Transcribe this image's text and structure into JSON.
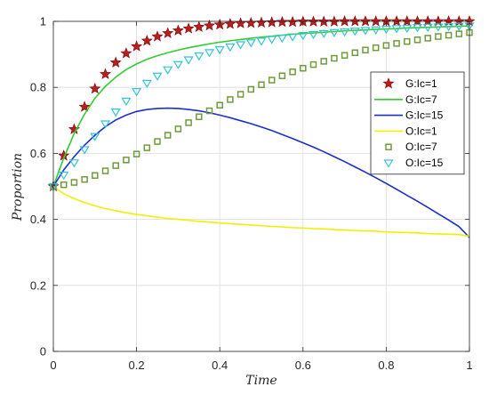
{
  "chart_data": {
    "type": "line",
    "title": "",
    "xlabel": "Time",
    "ylabel": "Proportion",
    "xlim": [
      0,
      1
    ],
    "ylim": [
      0,
      1
    ],
    "xticks": [
      "0",
      "0.2",
      "0.4",
      "0.6",
      "0.8",
      "1"
    ],
    "yticks": [
      "0",
      "0.2",
      "0.4",
      "0.6",
      "0.8",
      "1"
    ],
    "grid": true,
    "legend_position": "top-right",
    "x": [
      0,
      0.025,
      0.05,
      0.075,
      0.1,
      0.125,
      0.15,
      0.175,
      0.2,
      0.225,
      0.25,
      0.275,
      0.3,
      0.325,
      0.35,
      0.375,
      0.4,
      0.425,
      0.45,
      0.475,
      0.5,
      0.525,
      0.55,
      0.575,
      0.6,
      0.625,
      0.65,
      0.675,
      0.7,
      0.725,
      0.75,
      0.775,
      0.8,
      0.825,
      0.85,
      0.875,
      0.9,
      0.925,
      0.95,
      0.975,
      1.0
    ],
    "series": [
      {
        "name": "G:Ic=1",
        "style": "markers",
        "marker": "star",
        "color": "#b22222",
        "edge_color": "#8b0000",
        "values": [
          0.5,
          0.593,
          0.673,
          0.741,
          0.796,
          0.84,
          0.875,
          0.903,
          0.924,
          0.941,
          0.954,
          0.964,
          0.972,
          0.978,
          0.983,
          0.987,
          0.99,
          0.992,
          0.994,
          0.995,
          0.996,
          0.997,
          0.998,
          0.998,
          0.999,
          0.999,
          0.999,
          0.999,
          1.0,
          1.0,
          1.0,
          1.0,
          1.0,
          1.0,
          1.0,
          1.0,
          1.0,
          1.0,
          1.0,
          1.0,
          1.0
        ]
      },
      {
        "name": "G:Ic=7",
        "style": "line",
        "color": "#33cc33",
        "values": [
          0.5,
          0.586,
          0.66,
          0.719,
          0.767,
          0.803,
          0.831,
          0.854,
          0.871,
          0.885,
          0.896,
          0.905,
          0.913,
          0.92,
          0.926,
          0.932,
          0.937,
          0.941,
          0.945,
          0.949,
          0.952,
          0.955,
          0.958,
          0.961,
          0.963,
          0.965,
          0.967,
          0.969,
          0.971,
          0.973,
          0.974,
          0.976,
          0.977,
          0.978,
          0.98,
          0.981,
          0.982,
          0.983,
          0.984,
          0.985,
          0.986
        ]
      },
      {
        "name": "G:Ic=15",
        "style": "line",
        "color": "#1c2fcc",
        "values": [
          0.5,
          0.55,
          0.59,
          0.625,
          0.655,
          0.681,
          0.701,
          0.716,
          0.727,
          0.733,
          0.736,
          0.737,
          0.736,
          0.733,
          0.729,
          0.723,
          0.716,
          0.708,
          0.699,
          0.69,
          0.68,
          0.669,
          0.657,
          0.645,
          0.632,
          0.619,
          0.605,
          0.59,
          0.575,
          0.559,
          0.543,
          0.526,
          0.509,
          0.491,
          0.473,
          0.455,
          0.436,
          0.417,
          0.398,
          0.378,
          0.345
        ]
      },
      {
        "name": "O:Ic=1",
        "style": "line",
        "color": "#f0f000",
        "values": [
          0.5,
          0.478,
          0.463,
          0.451,
          0.441,
          0.433,
          0.426,
          0.42,
          0.415,
          0.411,
          0.407,
          0.403,
          0.4,
          0.397,
          0.394,
          0.392,
          0.389,
          0.387,
          0.385,
          0.383,
          0.381,
          0.379,
          0.377,
          0.375,
          0.374,
          0.372,
          0.371,
          0.369,
          0.368,
          0.366,
          0.365,
          0.364,
          0.362,
          0.361,
          0.36,
          0.359,
          0.357,
          0.356,
          0.355,
          0.354,
          0.349
        ]
      },
      {
        "name": "O:Ic=7",
        "style": "markers",
        "marker": "square",
        "color": "#6f9b3c",
        "values": [
          0.5,
          0.505,
          0.512,
          0.521,
          0.533,
          0.547,
          0.563,
          0.58,
          0.598,
          0.617,
          0.636,
          0.655,
          0.674,
          0.693,
          0.711,
          0.729,
          0.746,
          0.763,
          0.779,
          0.794,
          0.808,
          0.822,
          0.835,
          0.847,
          0.858,
          0.869,
          0.879,
          0.888,
          0.897,
          0.905,
          0.913,
          0.92,
          0.927,
          0.933,
          0.939,
          0.944,
          0.949,
          0.954,
          0.958,
          0.962,
          0.966
        ]
      },
      {
        "name": "O:Ic=15",
        "style": "markers",
        "marker": "triangle-down",
        "color": "#33c4d6",
        "values": [
          0.5,
          0.535,
          0.572,
          0.612,
          0.652,
          0.69,
          0.726,
          0.759,
          0.788,
          0.813,
          0.835,
          0.854,
          0.87,
          0.884,
          0.896,
          0.906,
          0.915,
          0.923,
          0.93,
          0.936,
          0.941,
          0.946,
          0.95,
          0.954,
          0.958,
          0.961,
          0.964,
          0.967,
          0.969,
          0.971,
          0.973,
          0.975,
          0.977,
          0.979,
          0.98,
          0.982,
          0.983,
          0.984,
          0.985,
          0.986,
          0.987
        ]
      }
    ]
  }
}
